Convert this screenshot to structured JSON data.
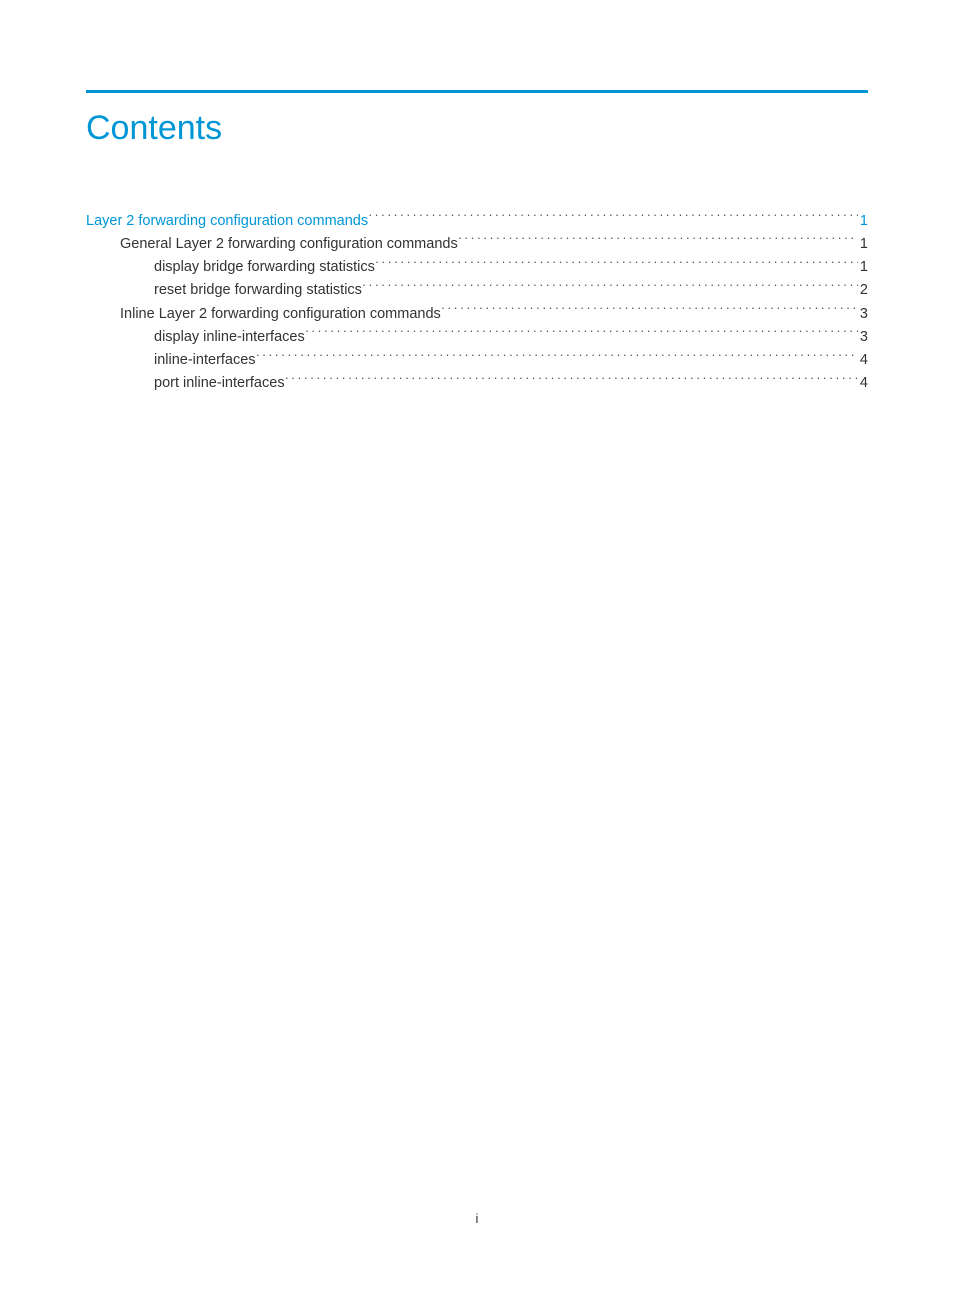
{
  "title": "Contents",
  "page_number": "i",
  "colors": {
    "accent": "#0096d6",
    "text": "#333333",
    "background": "#ffffff"
  },
  "typography": {
    "title_fontsize": 34,
    "body_fontsize": 14.5,
    "font_family": "Arial"
  },
  "toc": [
    {
      "level": 1,
      "text": "Layer 2 forwarding configuration commands",
      "page": "1"
    },
    {
      "level": 2,
      "text": "General Layer 2 forwarding configuration commands",
      "page": "1"
    },
    {
      "level": 3,
      "text": "display bridge forwarding statistics",
      "page": "1"
    },
    {
      "level": 3,
      "text": "reset bridge forwarding statistics",
      "page": "2"
    },
    {
      "level": 2,
      "text": "Inline Layer 2 forwarding configuration commands",
      "page": "3"
    },
    {
      "level": 3,
      "text": "display inline-interfaces",
      "page": "3"
    },
    {
      "level": 3,
      "text": "inline-interfaces",
      "page": "4"
    },
    {
      "level": 3,
      "text": "port inline-interfaces",
      "page": "4"
    }
  ]
}
